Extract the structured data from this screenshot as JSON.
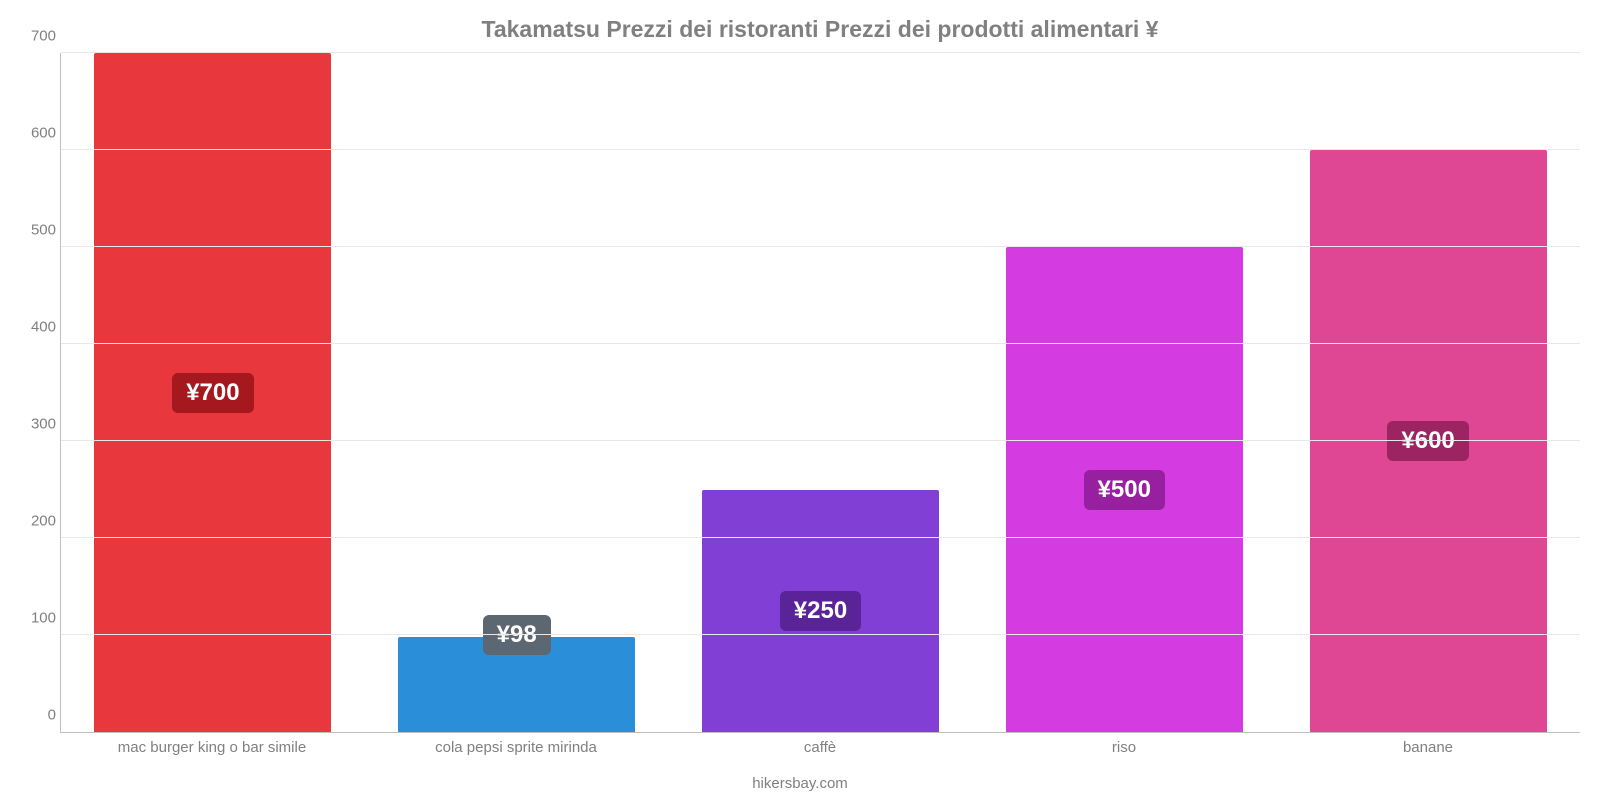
{
  "chart": {
    "type": "bar",
    "title": "Takamatsu Prezzi dei ristoranti Prezzi dei prodotti alimentari ¥",
    "title_color": "#808080",
    "title_fontsize": 23,
    "background_color": "#ffffff",
    "grid_color": "#e8e8e8",
    "axis_color": "#c0c0c0",
    "label_color": "#808080",
    "label_fontsize": 15,
    "ylim": [
      0,
      700
    ],
    "ytick_step": 100,
    "yticks": [
      0,
      100,
      200,
      300,
      400,
      500,
      600,
      700
    ],
    "bar_width_pct": 78,
    "value_fontsize": 24,
    "value_text_color": "#ffffff",
    "categories": [
      {
        "label": "mac burger king o bar simile",
        "value": 700,
        "display": "¥700",
        "bar_color": "#e8373d",
        "badge_color": "#a5181d"
      },
      {
        "label": "cola pepsi sprite mirinda",
        "value": 98,
        "display": "¥98",
        "bar_color": "#2a8ed8",
        "badge_color": "#5d6772"
      },
      {
        "label": "caffè",
        "value": 250,
        "display": "¥250",
        "bar_color": "#823fd6",
        "badge_color": "#5a2498"
      },
      {
        "label": "riso",
        "value": 500,
        "display": "¥500",
        "bar_color": "#d43be0",
        "badge_color": "#96209f"
      },
      {
        "label": "banane",
        "value": 600,
        "display": "¥600",
        "bar_color": "#df4694",
        "badge_color": "#9c2462"
      }
    ],
    "footer": "hikersbay.com"
  }
}
